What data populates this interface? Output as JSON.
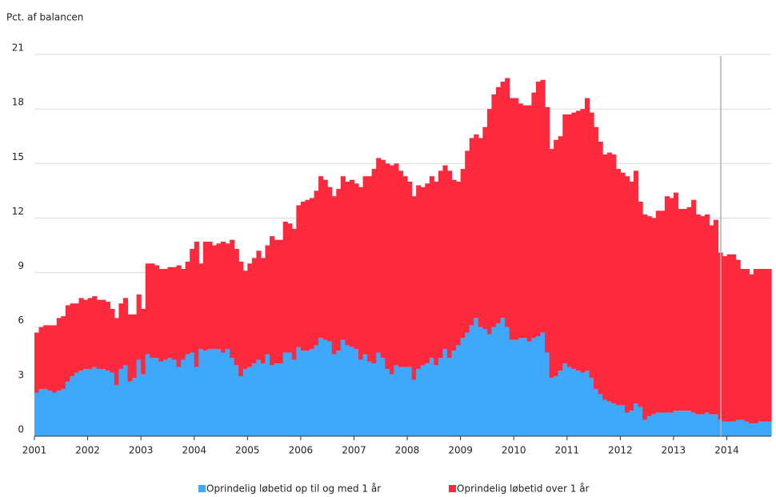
{
  "chart_data": {
    "type": "stacked_bar",
    "y_axis_label": "Pct. af balancen",
    "categories": [
      "2001",
      null,
      null,
      null,
      null,
      null,
      null,
      null,
      null,
      null,
      null,
      null,
      "2002",
      null,
      null,
      null,
      null,
      null,
      null,
      null,
      null,
      null,
      null,
      null,
      "2003",
      null,
      null,
      null,
      null,
      null,
      null,
      null,
      null,
      null,
      null,
      null,
      "2004",
      null,
      null,
      null,
      null,
      null,
      null,
      null,
      null,
      null,
      null,
      null,
      "2005",
      null,
      null,
      null,
      null,
      null,
      null,
      null,
      null,
      null,
      null,
      null,
      "2006",
      null,
      null,
      null,
      null,
      null,
      null,
      null,
      null,
      null,
      null,
      null,
      "2007",
      null,
      null,
      null,
      null,
      null,
      null,
      null,
      null,
      null,
      null,
      null,
      "2008",
      null,
      null,
      null,
      null,
      null,
      null,
      null,
      null,
      null,
      null,
      null,
      "2009",
      null,
      null,
      null,
      null,
      null,
      null,
      null,
      null,
      null,
      null,
      null,
      "2010",
      null,
      null,
      null,
      null,
      null,
      null,
      null,
      null,
      null,
      null,
      null,
      "2011",
      null,
      null,
      null,
      null,
      null,
      null,
      null,
      null,
      null,
      null,
      null,
      "2012",
      null,
      null,
      null,
      null,
      null,
      null,
      null,
      null,
      null,
      null,
      null,
      "2013",
      null,
      null,
      null,
      null,
      null,
      null,
      null,
      null,
      null,
      null,
      null,
      "2014",
      null,
      null,
      null,
      null,
      null,
      null,
      null,
      null,
      null
    ],
    "series": [
      {
        "name": "Oprindelig løbetid op til og med 1 år",
        "color": "#3ea8fa",
        "values": [
          2.4,
          2.6,
          2.6,
          2.5,
          2.4,
          2.5,
          2.6,
          3.0,
          3.3,
          3.5,
          3.6,
          3.7,
          3.7,
          3.8,
          3.7,
          3.7,
          3.6,
          3.5,
          2.8,
          3.7,
          3.9,
          3.0,
          3.2,
          4.2,
          3.4,
          4.5,
          4.3,
          4.3,
          4.1,
          4.2,
          4.3,
          4.2,
          3.8,
          4.2,
          4.5,
          4.6,
          3.8,
          4.8,
          4.7,
          4.8,
          4.8,
          4.8,
          4.6,
          4.8,
          4.3,
          3.9,
          3.3,
          3.7,
          3.8,
          4.0,
          4.2,
          4.0,
          4.5,
          3.9,
          4.0,
          4.0,
          4.6,
          4.6,
          4.2,
          4.9,
          4.7,
          4.7,
          4.8,
          5.0,
          5.4,
          5.3,
          5.2,
          4.5,
          4.7,
          5.3,
          5.0,
          4.9,
          4.8,
          4.2,
          4.5,
          4.1,
          4.0,
          4.6,
          4.3,
          3.7,
          3.4,
          3.9,
          3.8,
          3.8,
          3.8,
          3.1,
          3.7,
          3.9,
          4.0,
          4.3,
          3.9,
          4.3,
          4.8,
          4.3,
          4.7,
          5.0,
          5.4,
          5.7,
          6.1,
          6.5,
          6.0,
          5.9,
          5.6,
          6.0,
          6.2,
          6.5,
          6.0,
          5.3,
          5.3,
          5.4,
          5.4,
          5.2,
          5.4,
          5.5,
          5.7,
          4.6,
          3.2,
          3.3,
          3.6,
          4.0,
          3.8,
          3.7,
          3.6,
          3.5,
          3.6,
          3.2,
          2.6,
          2.3,
          2.0,
          1.9,
          1.8,
          1.7,
          1.7,
          1.3,
          1.4,
          1.8,
          1.6,
          0.9,
          1.1,
          1.2,
          1.3,
          1.3,
          1.3,
          1.3,
          1.4,
          1.4,
          1.4,
          1.4,
          1.3,
          1.2,
          1.2,
          1.3,
          1.2,
          1.2,
          0.9,
          0.8,
          0.8,
          0.8,
          0.9,
          0.9,
          0.8,
          0.7,
          0.7,
          0.8,
          0.8,
          0.8
        ]
      },
      {
        "name": "Oprindelig løbetid over 1 år",
        "color": "#fc2a3c",
        "values": [
          3.3,
          3.4,
          3.5,
          3.6,
          3.7,
          4.0,
          4.0,
          4.2,
          4.0,
          3.8,
          4.0,
          3.8,
          3.9,
          3.9,
          3.8,
          3.8,
          3.8,
          3.5,
          3.7,
          3.6,
          3.7,
          3.7,
          3.5,
          3.6,
          3.6,
          5.0,
          5.2,
          5.1,
          5.1,
          5.0,
          5.0,
          5.1,
          5.6,
          5.0,
          5.1,
          5.7,
          6.9,
          4.7,
          6.0,
          5.9,
          5.7,
          5.8,
          6.1,
          5.8,
          6.5,
          6.4,
          6.3,
          5.4,
          5.7,
          5.8,
          6.0,
          5.8,
          6.0,
          7.1,
          6.8,
          6.8,
          7.2,
          7.1,
          7.2,
          7.8,
          8.2,
          8.3,
          8.3,
          8.5,
          8.9,
          8.8,
          8.5,
          8.7,
          8.9,
          9.0,
          9.0,
          9.2,
          9.1,
          9.5,
          9.8,
          10.2,
          10.7,
          10.7,
          10.9,
          11.3,
          11.5,
          11.1,
          10.8,
          10.5,
          10.2,
          10.1,
          10.1,
          9.8,
          9.9,
          10.0,
          10.1,
          10.3,
          10.1,
          10.3,
          9.4,
          9.0,
          9.3,
          10.0,
          10.3,
          10.1,
          10.4,
          11.1,
          12.4,
          12.8,
          13.0,
          13.0,
          13.7,
          13.3,
          13.3,
          12.9,
          12.8,
          13.0,
          13.5,
          14.0,
          13.9,
          13.5,
          12.6,
          13.0,
          12.9,
          13.7,
          13.9,
          14.1,
          14.3,
          14.5,
          15.0,
          14.6,
          14.4,
          13.9,
          13.5,
          13.7,
          13.7,
          13.0,
          12.8,
          13.0,
          12.6,
          12.8,
          11.3,
          11.3,
          11.0,
          10.8,
          11.1,
          11.1,
          11.9,
          11.8,
          12.0,
          11.1,
          11.1,
          11.2,
          11.7,
          11.0,
          10.9,
          10.9,
          10.4,
          10.7,
          9.2,
          9.1,
          9.2,
          9.2,
          8.8,
          8.3,
          8.4,
          8.2,
          8.5,
          8.4,
          8.4,
          8.4
        ]
      }
    ],
    "ylim": [
      0,
      21
    ],
    "yticks": [
      0,
      3,
      6,
      9,
      12,
      15,
      18,
      21
    ],
    "grid": true
  }
}
